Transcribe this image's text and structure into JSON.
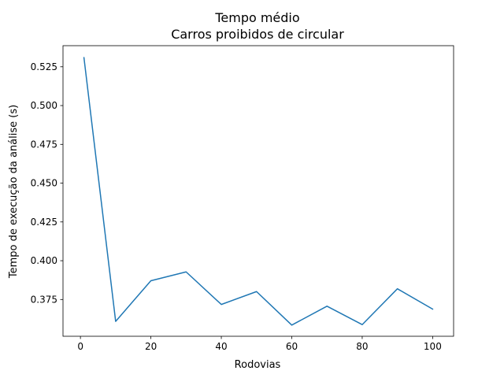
{
  "chart_data": {
    "type": "line",
    "title": "Tempo médio",
    "subtitle": "Carros proibidos de circular",
    "xlabel": "Rodovias",
    "ylabel": "Tempo de execução da análise (s)",
    "xlim": [
      -4.95,
      105.95
    ],
    "ylim": [
      0.3513,
      0.5386
    ],
    "xticks": [
      0,
      20,
      40,
      60,
      80,
      100
    ],
    "yticks": [
      0.375,
      0.4,
      0.425,
      0.45,
      0.475,
      0.5,
      0.525
    ],
    "grid": false,
    "series": [
      {
        "color": "#1f77b4",
        "x": [
          1,
          10,
          20,
          30,
          40,
          50,
          60,
          70,
          80,
          90,
          100
        ],
        "y": [
          0.5309,
          0.3609,
          0.3871,
          0.3928,
          0.3718,
          0.3801,
          0.3585,
          0.3707,
          0.3588,
          0.3819,
          0.3688
        ]
      }
    ]
  }
}
